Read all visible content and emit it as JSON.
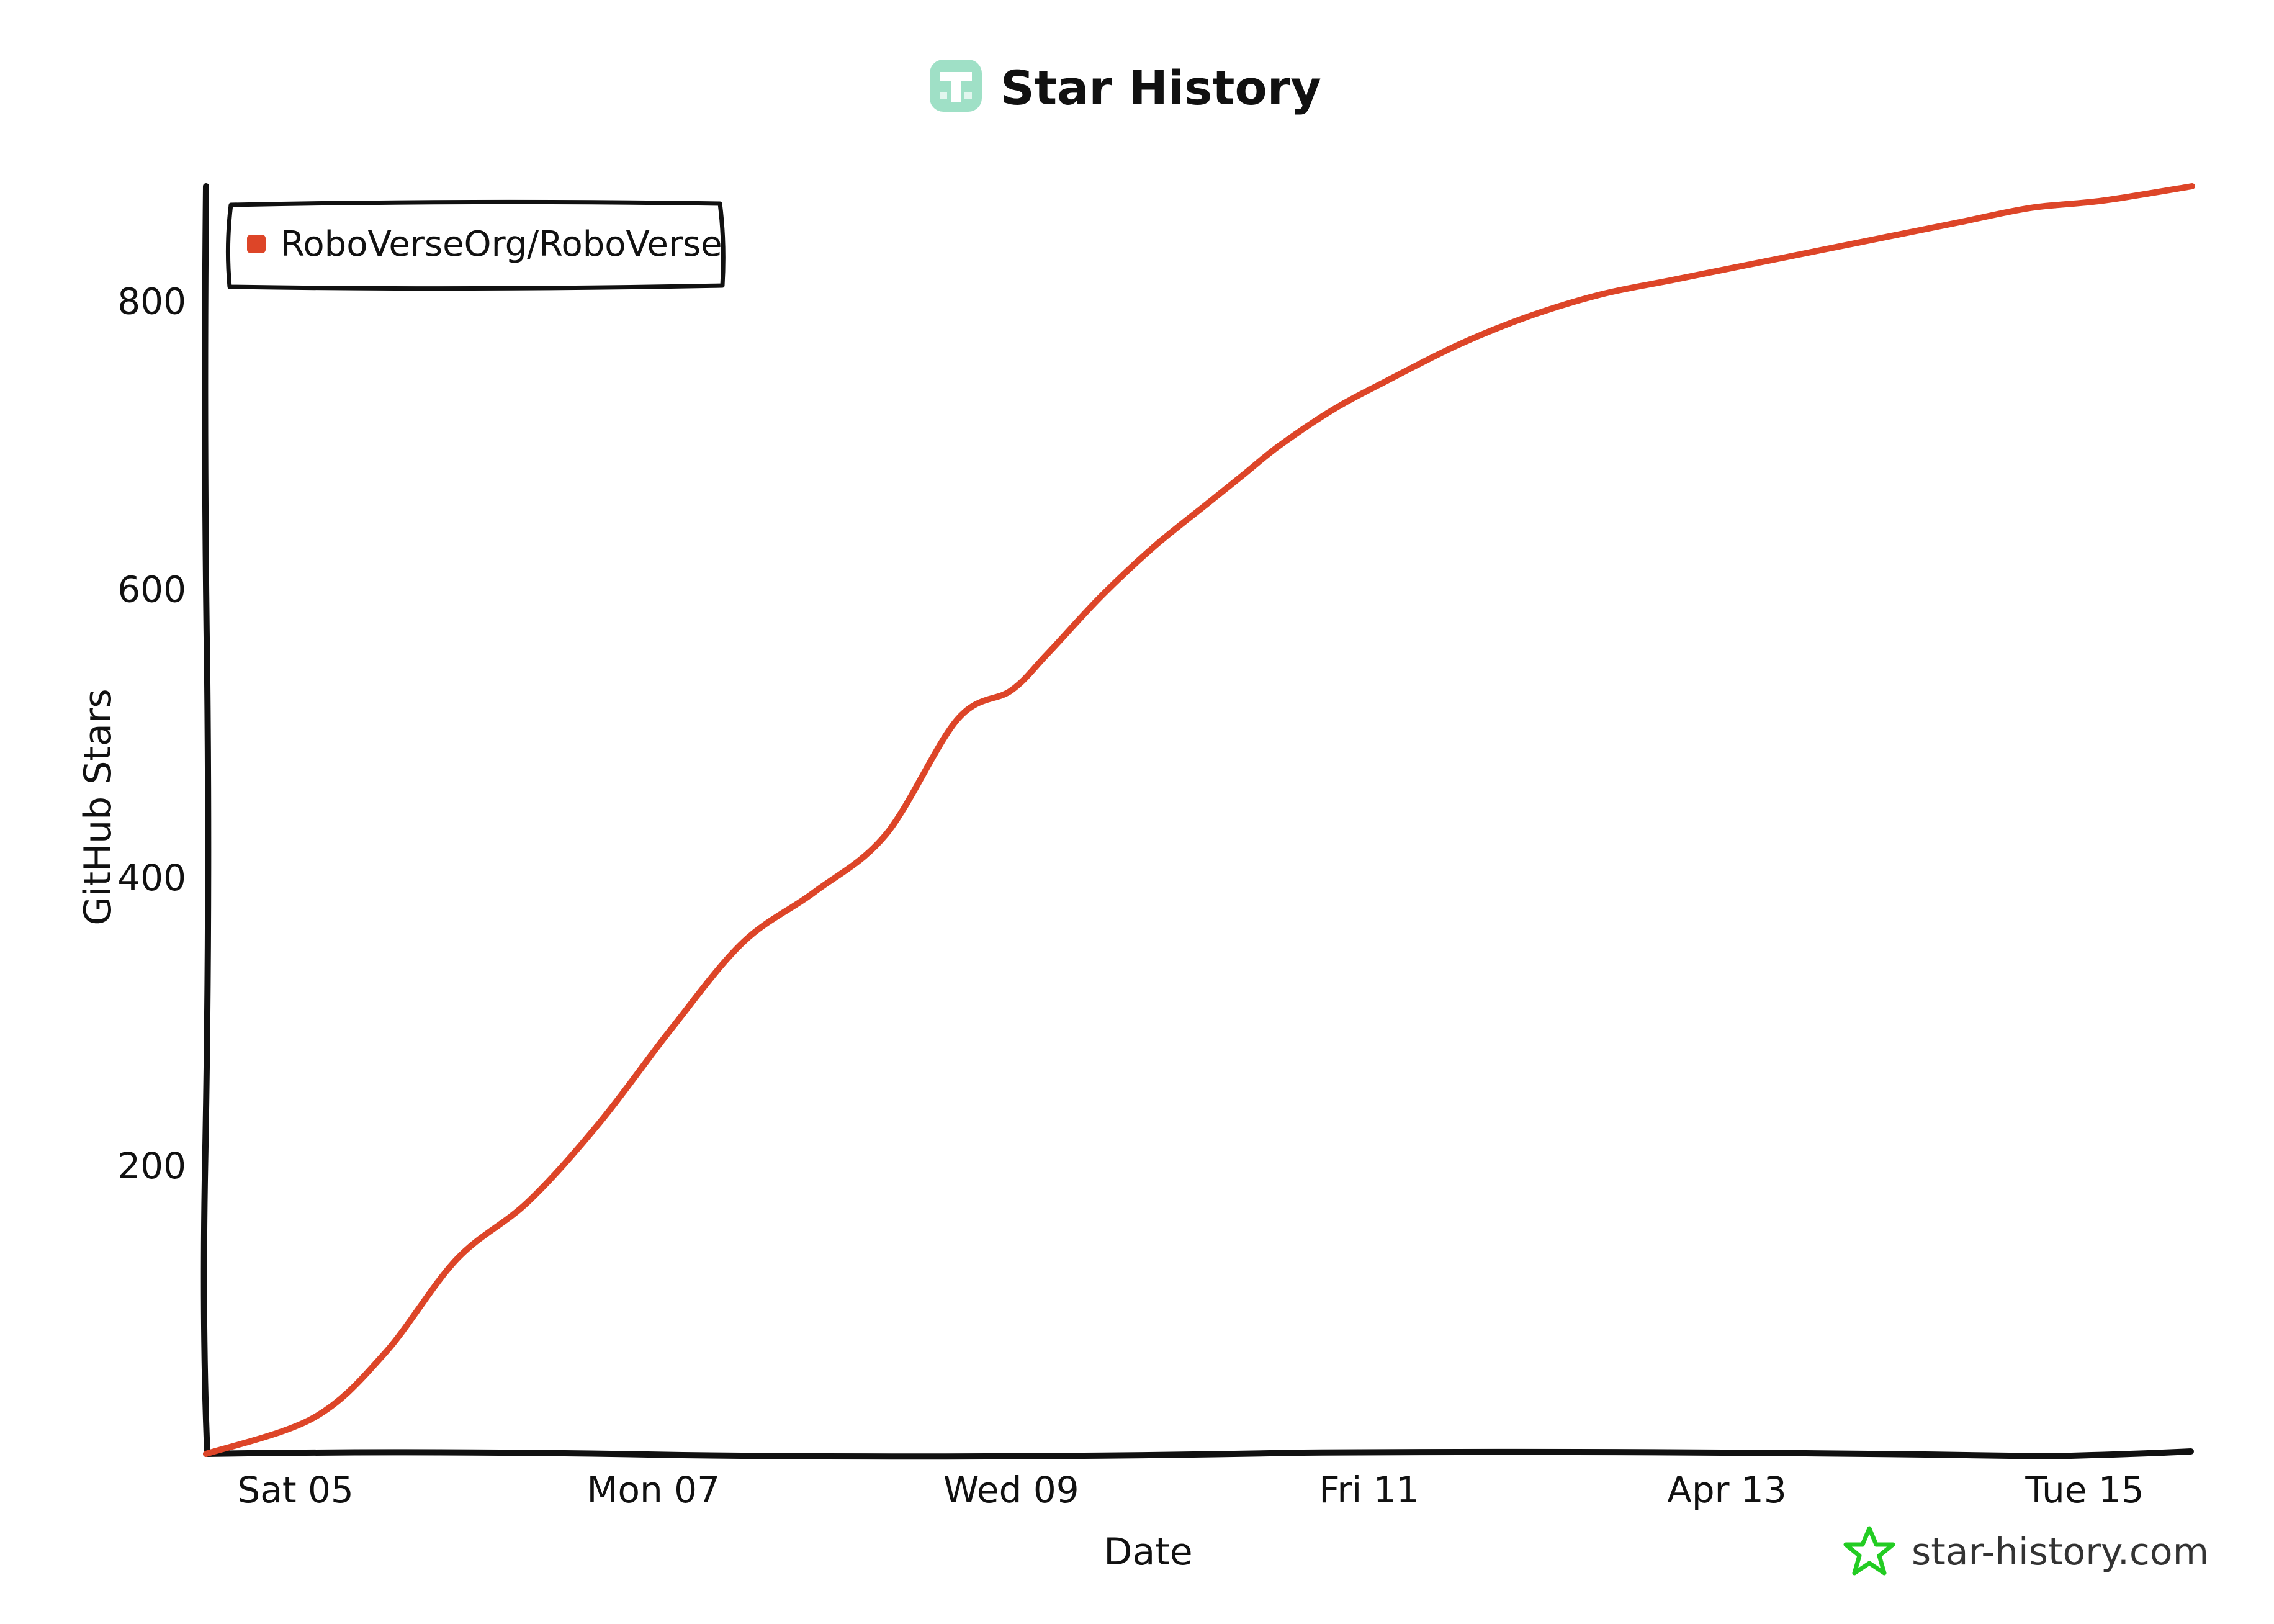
{
  "colors": {
    "series": "#dd4528",
    "axis": "#111111",
    "logo": "#9fe0c6",
    "watermark_icon": "#22cc22"
  },
  "header": {
    "logo_icon": "star-history-logo-icon",
    "title": "Star History"
  },
  "watermark": {
    "icon": "star-outline-icon",
    "text": "star-history.com"
  },
  "chart_data": {
    "type": "line",
    "title": "Star History",
    "xlabel": "Date",
    "ylabel": "GitHub Stars",
    "x_ticks": [
      "Sat 05",
      "Mon 07",
      "Wed 09",
      "Fri 11",
      "Apr 13",
      "Tue 15"
    ],
    "y_ticks": [
      200,
      400,
      600,
      800
    ],
    "ylim": [
      0,
      880
    ],
    "xlim_days": [
      0,
      11.1
    ],
    "grid": false,
    "legend_position": "top-left",
    "series": [
      {
        "name": "RoboVerseOrg/RoboVerse",
        "x_days": [
          0,
          0.6,
          1.0,
          1.4,
          1.8,
          2.2,
          2.6,
          3.0,
          3.4,
          3.8,
          4.2,
          4.5,
          4.7,
          5.0,
          5.3,
          5.6,
          5.8,
          6.0,
          6.3,
          6.6,
          7.0,
          7.4,
          7.8,
          8.2,
          8.6,
          9.0,
          9.4,
          9.8,
          10.2,
          10.6,
          11.1
        ],
        "y": [
          0,
          25,
          70,
          135,
          175,
          230,
          295,
          355,
          390,
          430,
          510,
          530,
          555,
          595,
          630,
          660,
          680,
          700,
          725,
          745,
          770,
          790,
          805,
          815,
          825,
          835,
          845,
          855,
          865,
          870,
          880
        ]
      }
    ]
  }
}
